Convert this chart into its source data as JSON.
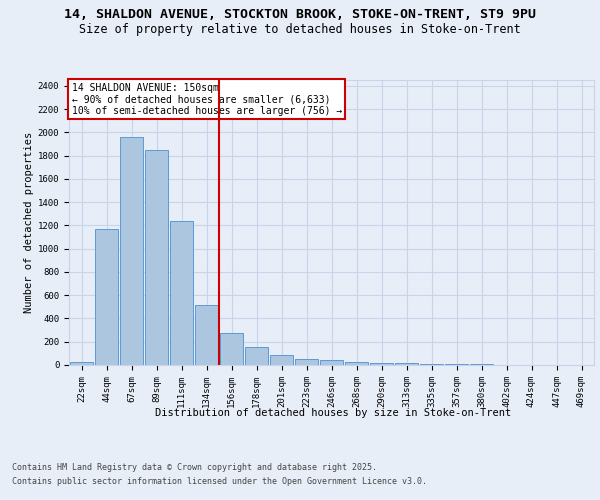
{
  "title_line1": "14, SHALDON AVENUE, STOCKTON BROOK, STOKE-ON-TRENT, ST9 9PU",
  "title_line2": "Size of property relative to detached houses in Stoke-on-Trent",
  "xlabel": "Distribution of detached houses by size in Stoke-on-Trent",
  "ylabel": "Number of detached properties",
  "categories": [
    "22sqm",
    "44sqm",
    "67sqm",
    "89sqm",
    "111sqm",
    "134sqm",
    "156sqm",
    "178sqm",
    "201sqm",
    "223sqm",
    "246sqm",
    "268sqm",
    "290sqm",
    "313sqm",
    "335sqm",
    "357sqm",
    "380sqm",
    "402sqm",
    "424sqm",
    "447sqm",
    "469sqm"
  ],
  "values": [
    25,
    1170,
    1960,
    1850,
    1240,
    520,
    275,
    155,
    90,
    50,
    42,
    30,
    20,
    15,
    10,
    8,
    5,
    3,
    2,
    2,
    2
  ],
  "bar_color": "#adc6e0",
  "bar_edge_color": "#5b9bd5",
  "annotation_text_line1": "14 SHALDON AVENUE: 150sqm",
  "annotation_text_line2": "← 90% of detached houses are smaller (6,633)",
  "annotation_text_line3": "10% of semi-detached houses are larger (756) →",
  "annotation_box_color": "#ffffff",
  "annotation_box_edge": "#cc0000",
  "vline_color": "#cc0000",
  "vline_x": 5.5,
  "ylim": [
    0,
    2450
  ],
  "yticks": [
    0,
    200,
    400,
    600,
    800,
    1000,
    1200,
    1400,
    1600,
    1800,
    2000,
    2200,
    2400
  ],
  "grid_color": "#c8d4e8",
  "bg_color": "#e8eef8",
  "plot_bg_color": "#e8eef8",
  "footer_line1": "Contains HM Land Registry data © Crown copyright and database right 2025.",
  "footer_line2": "Contains public sector information licensed under the Open Government Licence v3.0.",
  "title_fontsize": 9.5,
  "subtitle_fontsize": 8.5,
  "axis_label_fontsize": 7.5,
  "tick_fontsize": 6.5,
  "annotation_fontsize": 7
}
